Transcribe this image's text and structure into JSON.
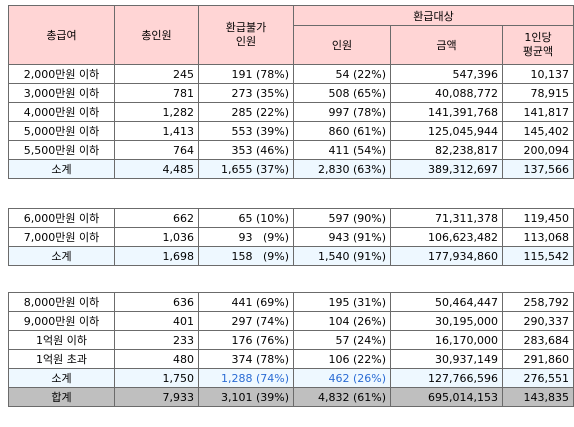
{
  "headers": {
    "income": "총급여",
    "total_people": "총인원",
    "ineligible": "환급불가\n인원",
    "eligible_group": "환급대상",
    "eligible_people": "인원",
    "amount": "금액",
    "per_person": "1인당\n평균액"
  },
  "sections": [
    {
      "rows": [
        {
          "label": "2,000만원 이하",
          "total": "245",
          "inel": "191 (78%)",
          "elig": "54 (22%)",
          "amount": "547,396",
          "avg": "10,137"
        },
        {
          "label": "3,000만원 이하",
          "total": "781",
          "inel": "273 (35%)",
          "elig": "508 (65%)",
          "amount": "40,088,772",
          "avg": "78,915"
        },
        {
          "label": "4,000만원 이하",
          "total": "1,282",
          "inel": "285 (22%)",
          "elig": "997 (78%)",
          "amount": "141,391,768",
          "avg": "141,817"
        },
        {
          "label": "5,000만원 이하",
          "total": "1,413",
          "inel": "553 (39%)",
          "elig": "860 (61%)",
          "amount": "125,045,944",
          "avg": "145,402"
        },
        {
          "label": "5,500만원 이하",
          "total": "764",
          "inel": "353 (46%)",
          "elig": "411 (54%)",
          "amount": "82,238,817",
          "avg": "200,094"
        }
      ],
      "subtotal": {
        "label": "소계",
        "total": "4,485",
        "inel": "1,655 (37%)",
        "elig": "2,830 (63%)",
        "amount": "389,312,697",
        "avg": "137,566"
      }
    },
    {
      "rows": [
        {
          "label": "6,000만원 이하",
          "total": "662",
          "inel": "65 (10%)",
          "elig": "597 (90%)",
          "amount": "71,311,378",
          "avg": "119,450"
        },
        {
          "label": "7,000만원 이하",
          "total": "1,036",
          "inel": "93   (9%)",
          "elig": "943 (91%)",
          "amount": "106,623,482",
          "avg": "113,068"
        }
      ],
      "subtotal": {
        "label": "소계",
        "total": "1,698",
        "inel": "158   (9%)",
        "elig": "1,540 (91%)",
        "amount": "177,934,860",
        "avg": "115,542"
      }
    },
    {
      "rows": [
        {
          "label": "8,000만원 이하",
          "total": "636",
          "inel": "441 (69%)",
          "elig": "195 (31%)",
          "amount": "50,464,447",
          "avg": "258,792"
        },
        {
          "label": "9,000만원 이하",
          "total": "401",
          "inel": "297 (74%)",
          "elig": "104 (26%)",
          "amount": "30,195,000",
          "avg": "290,337"
        },
        {
          "label": "1억원 이하",
          "total": "233",
          "inel": "176 (76%)",
          "elig": "57 (24%)",
          "amount": "16,170,000",
          "avg": "283,684"
        },
        {
          "label": "1억원 초과",
          "total": "480",
          "inel": "374 (78%)",
          "elig": "106 (22%)",
          "amount": "30,937,149",
          "avg": "291,860"
        }
      ],
      "subtotal": {
        "label": "소계",
        "total": "1,750",
        "inel": "1,288 (74%)",
        "elig": "462 (26%)",
        "amount": "127,766,596",
        "avg": "276,551"
      }
    }
  ],
  "grand_total": {
    "label": "합계",
    "total": "7,933",
    "inel": "3,101 (39%)",
    "elig": "4,832 (61%)",
    "amount": "695,014,153",
    "avg": "143,835"
  },
  "colors": {
    "header_bg": "#ffd5d5",
    "subtotal_bg": "#eef8ff",
    "total_bg": "#bfbfbf",
    "highlight_text": "#2b6cd4"
  }
}
